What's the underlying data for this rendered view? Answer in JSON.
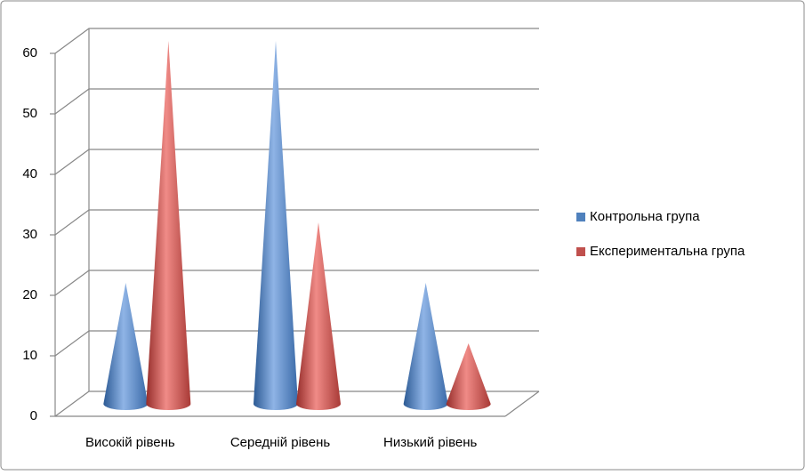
{
  "chart_data": {
    "type": "cone3d",
    "categories": [
      "Високій рівень",
      "Середній рівень",
      "Низький рівень"
    ],
    "series": [
      {
        "name": "Контрольна група",
        "color": "#4f81bd",
        "values": [
          20,
          60,
          20
        ]
      },
      {
        "name": "Експериментальна група",
        "color": "#c0504d",
        "values": [
          60,
          30,
          10
        ]
      }
    ],
    "ylim": [
      0,
      60
    ],
    "yticks": [
      0,
      10,
      20,
      30,
      40,
      50,
      60
    ],
    "grid": true,
    "legend": "right"
  }
}
